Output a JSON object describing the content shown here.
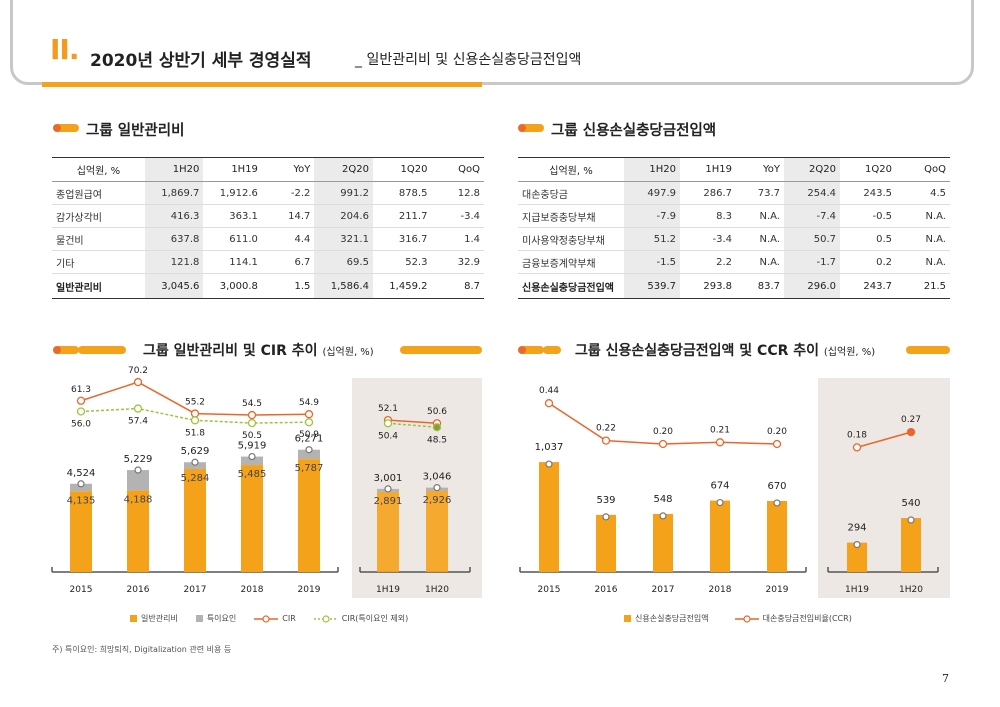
{
  "header": {
    "num": "II.",
    "title": "2020년 상반기 세부 경영실적",
    "sub": "_ 일반관리비 및 신용손실충당금전입액"
  },
  "left_table": {
    "title": "그룹 일반관리비",
    "headers": [
      "십억원, %",
      "1H20",
      "1H19",
      "YoY",
      "2Q20",
      "1Q20",
      "QoQ"
    ],
    "rows": [
      [
        "종업원급여",
        "1,869.7",
        "1,912.6",
        "-2.2",
        "991.2",
        "878.5",
        "12.8"
      ],
      [
        "감가상각비",
        "416.3",
        "363.1",
        "14.7",
        "204.6",
        "211.7",
        "-3.4"
      ],
      [
        "물건비",
        "637.8",
        "611.0",
        "4.4",
        "321.1",
        "316.7",
        "1.4"
      ],
      [
        "기타",
        "121.8",
        "114.1",
        "6.7",
        "69.5",
        "52.3",
        "32.9"
      ]
    ],
    "total": [
      "일반관리비",
      "3,045.6",
      "3,000.8",
      "1.5",
      "1,586.4",
      "1,459.2",
      "8.7"
    ]
  },
  "right_table": {
    "title": "그룹 신용손실충당금전입액",
    "headers": [
      "십억원, %",
      "1H20",
      "1H19",
      "YoY",
      "2Q20",
      "1Q20",
      "QoQ"
    ],
    "rows": [
      [
        "대손충당금",
        "497.9",
        "286.7",
        "73.7",
        "254.4",
        "243.5",
        "4.5"
      ],
      [
        "지급보증충당부채",
        "-7.9",
        "8.3",
        "N.A.",
        "-7.4",
        "-0.5",
        "N.A."
      ],
      [
        "미사용약정충당부채",
        "51.2",
        "-3.4",
        "N.A.",
        "50.7",
        "0.5",
        "N.A."
      ],
      [
        "금융보증계약부채",
        "-1.5",
        "2.2",
        "N.A.",
        "-1.7",
        "0.2",
        "N.A."
      ]
    ],
    "total": [
      "신용손실충당금전입액",
      "539.7",
      "293.8",
      "83.7",
      "296.0",
      "243.7",
      "21.5"
    ]
  },
  "left_chart_title": {
    "main": "그룹 일반관리비 및 CIR 추이",
    "unit": "(십억원, %)"
  },
  "right_chart_title": {
    "main": "그룹 신용손실충당금전입액 및 CCR 추이",
    "unit": "(십억원, %)"
  },
  "chart_data": [
    {
      "type": "bar",
      "categories": [
        "2015",
        "2016",
        "2017",
        "2018",
        "2019",
        "1H19",
        "1H20"
      ],
      "series": [
        {
          "name": "일반관리비",
          "values": [
            4135,
            4188,
            5284,
            5485,
            5787,
            2891,
            2926
          ]
        },
        {
          "name": "특이요인",
          "values": [
            4524,
            5229,
            5629,
            5919,
            6271,
            3001,
            3046
          ]
        },
        {
          "name": "CIR",
          "values": [
            61.3,
            70.2,
            55.2,
            54.5,
            54.9,
            52.1,
            50.6
          ]
        },
        {
          "name": "CIR(특이요인 제외)",
          "values": [
            56.0,
            57.4,
            51.8,
            50.5,
            50.9,
            50.4,
            48.5
          ]
        }
      ],
      "colors": {
        "bar": "#f5a21b",
        "extra": "#b3b3b3",
        "cir": "#e9672a",
        "cir_ex": "#9bc53d"
      }
    },
    {
      "type": "bar",
      "categories": [
        "2015",
        "2016",
        "2017",
        "2018",
        "2019",
        "1H19",
        "1H20"
      ],
      "series": [
        {
          "name": "신용손실충당금전입액",
          "values": [
            1037,
            539,
            548,
            674,
            670,
            294,
            540
          ]
        },
        {
          "name": "대손충당금전입비율(CCR)",
          "values": [
            0.44,
            0.22,
            0.2,
            0.21,
            0.2,
            0.18,
            0.27
          ]
        }
      ],
      "labels": {
        "bars": [
          "1,037",
          "539",
          "548",
          "674",
          "670",
          "294",
          "540"
        ],
        "ccr": [
          "0.44",
          "0.22",
          "0.20",
          "0.21",
          "0.20",
          "0.18",
          "0.27"
        ]
      },
      "colors": {
        "bar": "#f5a21b",
        "ccr": "#e9672a"
      }
    }
  ],
  "left_labels": {
    "total": [
      "4,524",
      "5,229",
      "5,629",
      "5,919",
      "6,271",
      "3,001",
      "3,046"
    ],
    "base": [
      "4,135",
      "4,188",
      "5,284",
      "5,485",
      "5,787",
      "2,891",
      "2,926"
    ],
    "cir": [
      "61.3",
      "70.2",
      "55.2",
      "54.5",
      "54.9",
      "52.1",
      "50.6"
    ],
    "cir_ex": [
      "56.0",
      "57.4",
      "51.8",
      "50.5",
      "50.9",
      "50.4",
      "48.5"
    ]
  },
  "left_legend": [
    "일반관리비",
    "특이요인",
    "CIR",
    "CIR(특이요인 제외)"
  ],
  "right_legend": [
    "신용손실충당금전입액",
    "대손충당금전입비율(CCR)"
  ],
  "note": "주) 특이요인: 희망퇴직, Digitalization 관련 비용 등",
  "page_number": "7"
}
